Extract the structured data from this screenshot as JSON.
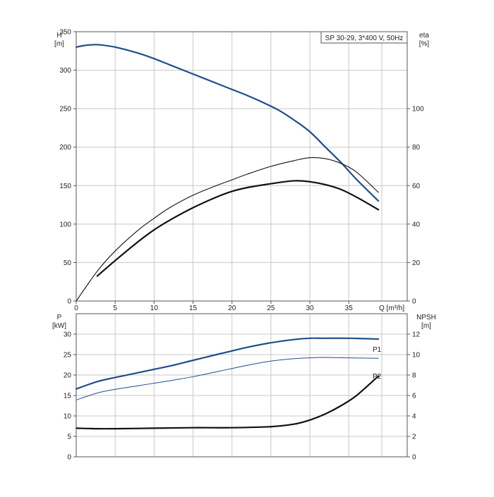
{
  "chart_data": [
    {
      "type": "line",
      "title": "SP 30-29, 3*400 V, 50Hz",
      "xlabel": "Q [m³/h]",
      "ylabel": "H",
      "ylabel_unit": "[m]",
      "y2label": "eta",
      "y2label_unit": "[%]",
      "xlim": [
        0,
        42.5
      ],
      "ylim": [
        0,
        350
      ],
      "y2lim": [
        0,
        140
      ],
      "grid": true,
      "x_ticks": [
        0,
        5,
        10,
        15,
        20,
        25,
        30,
        35
      ],
      "x_tick_labels": [
        "0",
        "5",
        "10",
        "15",
        "20",
        "25",
        "30",
        "35"
      ],
      "y_ticks": [
        0,
        50,
        100,
        150,
        200,
        250,
        300,
        350
      ],
      "y_tick_labels": [
        "0",
        "50",
        "100",
        "150",
        "200",
        "250",
        "300",
        "350"
      ],
      "y2_ticks": [
        0,
        20,
        40,
        60,
        80,
        100
      ],
      "y2_tick_labels": [
        "0",
        "20",
        "40",
        "60",
        "80",
        "100"
      ],
      "series": [
        {
          "color": "#1f4e8c",
          "width": 2.2,
          "axis": "left",
          "x": [
            0,
            1,
            2,
            3,
            5,
            8,
            10,
            12,
            15,
            18,
            20,
            22,
            24,
            26,
            28,
            30,
            32,
            34,
            36,
            38.8
          ],
          "y": [
            330,
            332,
            333,
            333,
            330,
            322,
            315,
            307,
            295,
            283,
            275,
            267,
            258,
            248,
            235,
            220,
            200,
            180,
            158,
            130
          ]
        },
        {
          "color": "#111111",
          "width": 1.1,
          "axis": "right",
          "x": [
            0,
            2.7,
            5,
            8,
            10,
            12,
            15,
            18,
            20,
            22,
            25,
            28,
            30,
            32,
            34,
            36,
            38.8
          ],
          "y": [
            0,
            15.5,
            26,
            37,
            43,
            48.5,
            55,
            60,
            63,
            66,
            70,
            73,
            74.5,
            74,
            71.5,
            67,
            56.5
          ]
        },
        {
          "color": "#111111",
          "width": 2.2,
          "axis": "right",
          "x": [
            2.7,
            5,
            8,
            10,
            12,
            15,
            18,
            20,
            22,
            25,
            28,
            30,
            32,
            34,
            36,
            38.8
          ],
          "y": [
            13,
            21,
            31,
            37,
            42,
            48.5,
            54,
            57,
            59,
            61,
            62.5,
            62,
            60.5,
            58,
            54,
            47.5
          ]
        }
      ]
    },
    {
      "type": "line",
      "ylabel": "P",
      "ylabel_unit": "[kW]",
      "y2label": "NPSH",
      "y2label_unit": "[m]",
      "xlim": [
        0,
        42.5
      ],
      "ylim": [
        0,
        35
      ],
      "y2lim": [
        0,
        14
      ],
      "grid": true,
      "y_ticks": [
        0,
        5,
        10,
        15,
        20,
        25,
        30
      ],
      "y_tick_labels": [
        "0",
        "5",
        "10",
        "15",
        "20",
        "25",
        "30"
      ],
      "y2_ticks": [
        0,
        2,
        4,
        6,
        8,
        10,
        12
      ],
      "y2_tick_labels": [
        "0",
        "2",
        "4",
        "6",
        "8",
        "10",
        "12"
      ],
      "series": [
        {
          "name": "P1",
          "color": "#1f4e8c",
          "width": 2.2,
          "axis": "left",
          "x": [
            0,
            2.7,
            5,
            8,
            10,
            12,
            15,
            18,
            20,
            22,
            25,
            28,
            30,
            32,
            35,
            38.8
          ],
          "y": [
            16.6,
            18.4,
            19.4,
            20.6,
            21.4,
            22.2,
            23.6,
            25,
            25.9,
            26.8,
            27.9,
            28.7,
            29,
            29,
            29,
            28.8
          ]
        },
        {
          "name": "P2",
          "color": "#1f4e8c",
          "width": 1.0,
          "axis": "left",
          "x": [
            0,
            2.7,
            5,
            8,
            10,
            12,
            15,
            18,
            20,
            22,
            25,
            28,
            30,
            32,
            35,
            38.8
          ],
          "y": [
            13.9,
            15.6,
            16.5,
            17.4,
            18,
            18.6,
            19.6,
            20.8,
            21.6,
            22.4,
            23.4,
            24,
            24.2,
            24.3,
            24.2,
            24.1
          ]
        },
        {
          "color": "#111111",
          "width": 2.2,
          "axis": "right",
          "x": [
            0,
            2.7,
            5,
            10,
            15,
            20,
            25,
            28,
            30,
            32,
            34,
            36,
            38.8
          ],
          "y": [
            2.8,
            2.75,
            2.75,
            2.8,
            2.85,
            2.85,
            2.95,
            3.2,
            3.6,
            4.2,
            5,
            6,
            7.9
          ]
        }
      ]
    }
  ]
}
